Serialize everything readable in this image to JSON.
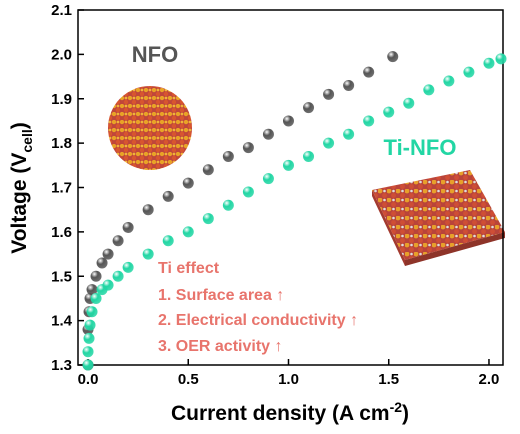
{
  "chart_data": {
    "type": "scatter-line",
    "xlabel": [
      "Current density (A cm",
      "-2",
      ")"
    ],
    "ylabel": [
      "Voltage (V",
      "cell",
      ")"
    ],
    "xlim": [
      -0.05,
      2.07
    ],
    "ylim": [
      1.3,
      2.1
    ],
    "xticks": [
      {
        "value": 0,
        "label": "0.0"
      },
      0.5,
      {
        "value": 1,
        "label": "1.0"
      },
      1.5,
      {
        "value": 2,
        "label": "2.0"
      }
    ],
    "yticks": [
      1.3,
      1.4,
      1.5,
      1.6,
      1.7,
      1.8,
      1.9,
      {
        "value": 2,
        "label": "2.0"
      },
      2.1
    ],
    "series": [
      {
        "name": "NFO",
        "color": "#555555",
        "x": [
          0,
          0,
          0.005,
          0.01,
          0.02,
          0.04,
          0.07,
          0.1,
          0.15,
          0.2,
          0.3,
          0.4,
          0.5,
          0.6,
          0.7,
          0.8,
          0.9,
          1.0,
          1.1,
          1.2,
          1.3,
          1.4,
          1.52
        ],
        "values": [
          1.3,
          1.38,
          1.42,
          1.45,
          1.47,
          1.5,
          1.53,
          1.55,
          1.58,
          1.61,
          1.65,
          1.68,
          1.71,
          1.74,
          1.77,
          1.79,
          1.82,
          1.85,
          1.88,
          1.91,
          1.93,
          1.96,
          1.995
        ]
      },
      {
        "name": "Ti-NFO",
        "color": "#22d6a4",
        "x": [
          0,
          0,
          0.005,
          0.01,
          0.02,
          0.04,
          0.07,
          0.1,
          0.15,
          0.2,
          0.3,
          0.4,
          0.5,
          0.6,
          0.7,
          0.8,
          0.9,
          1.0,
          1.1,
          1.2,
          1.3,
          1.4,
          1.5,
          1.6,
          1.7,
          1.8,
          1.9,
          2.0,
          2.06
        ],
        "values": [
          1.3,
          1.33,
          1.36,
          1.39,
          1.42,
          1.45,
          1.47,
          1.48,
          1.5,
          1.52,
          1.55,
          1.58,
          1.6,
          1.63,
          1.66,
          1.69,
          1.72,
          1.75,
          1.77,
          1.8,
          1.82,
          1.85,
          1.87,
          1.89,
          1.92,
          1.94,
          1.96,
          1.98,
          1.99
        ]
      }
    ],
    "annotations": [
      "Ti effect",
      "1. Surface area ↑",
      "2. Electrical conductivity ↑",
      "3. OER activity ↑"
    ],
    "annotation_color": "#e8746c"
  }
}
